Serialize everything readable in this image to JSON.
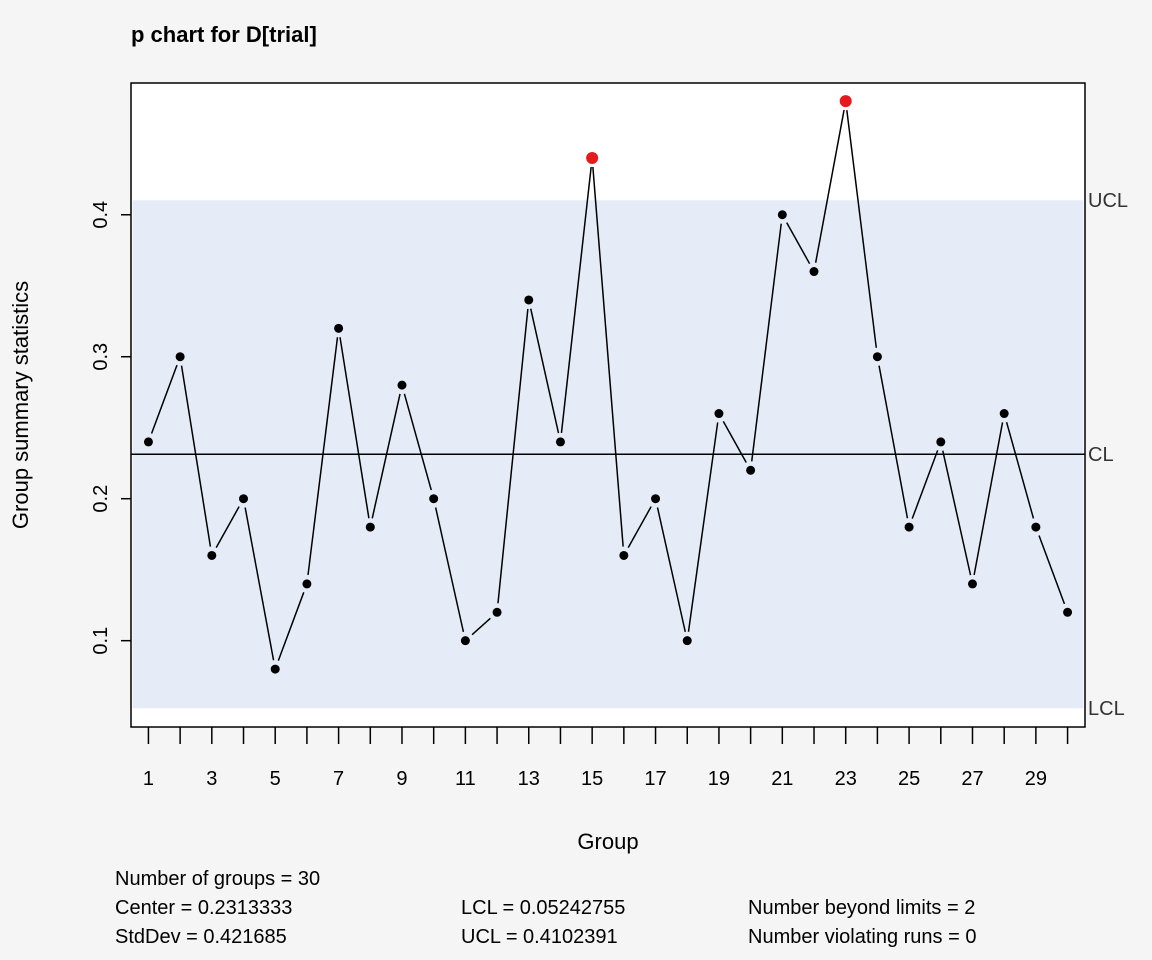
{
  "chart_data": {
    "type": "line",
    "title": "p chart for D[trial]",
    "xlabel": "Group",
    "ylabel": "Group summary statistics",
    "x": [
      1,
      2,
      3,
      4,
      5,
      6,
      7,
      8,
      9,
      10,
      11,
      12,
      13,
      14,
      15,
      16,
      17,
      18,
      19,
      20,
      21,
      22,
      23,
      24,
      25,
      26,
      27,
      28,
      29,
      30
    ],
    "values": [
      0.24,
      0.3,
      0.16,
      0.2,
      0.08,
      0.14,
      0.32,
      0.18,
      0.28,
      0.2,
      0.1,
      0.12,
      0.34,
      0.24,
      0.44,
      0.16,
      0.2,
      0.1,
      0.26,
      0.22,
      0.4,
      0.36,
      0.48,
      0.3,
      0.18,
      0.24,
      0.14,
      0.26,
      0.18,
      0.12
    ],
    "xticks": [
      1,
      3,
      5,
      7,
      9,
      11,
      13,
      15,
      17,
      19,
      21,
      23,
      25,
      27,
      29
    ],
    "yticks": [
      0.1,
      0.2,
      0.3,
      0.4
    ],
    "xlim": [
      0.45,
      30.55
    ],
    "ylim": [
      0.0392,
      0.4928
    ],
    "center": 0.2313333,
    "lcl": 0.05242755,
    "ucl": 0.4102391,
    "limit_labels": {
      "ucl": "UCL",
      "cl": "CL",
      "lcl": "LCL"
    },
    "colors": {
      "background": "#f5f5f5",
      "plot_bg": "#ffffff",
      "band": "#e6ecf7",
      "point": "#000000",
      "violation": "#e41a1c"
    },
    "grid": false
  },
  "stats": {
    "groups": "Number of groups = 30",
    "center": "Center = 0.2313333",
    "stddev": "StdDev = 0.421685",
    "lcl": "LCL = 0.05242755",
    "ucl": "UCL = 0.4102391",
    "beyond": "Number beyond limits = 2",
    "runs": "Number violating runs = 0"
  }
}
